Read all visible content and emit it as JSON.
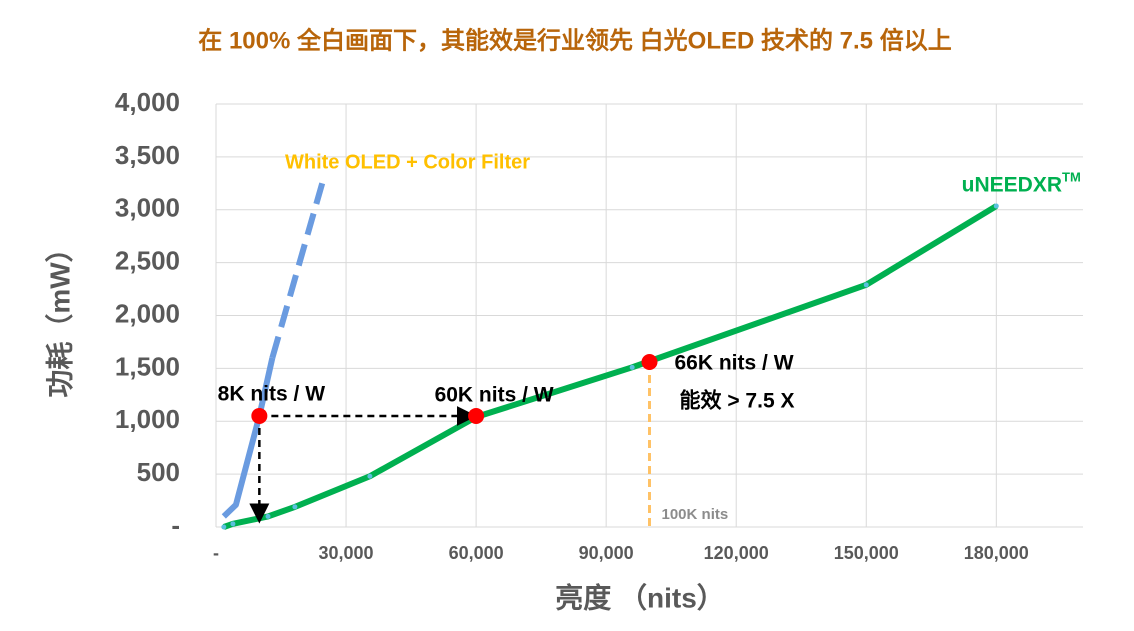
{
  "chart_data": {
    "type": "line",
    "title": "在 100% 全白画面下，其能效是行业领先 白光OLED 技术的 7.5 倍以上",
    "y_label": "功耗（mW）",
    "x_label": "亮度 （nits）",
    "xlim": [
      0,
      200000
    ],
    "ylim": [
      0,
      4000
    ],
    "xticks": [
      {
        "value": 0,
        "label": "-"
      },
      {
        "value": 30000,
        "label": "30,000"
      },
      {
        "value": 60000,
        "label": "60,000"
      },
      {
        "value": 90000,
        "label": "90,000"
      },
      {
        "value": 120000,
        "label": "120,000"
      },
      {
        "value": 150000,
        "label": "150,000"
      },
      {
        "value": 180000,
        "label": "180,000"
      }
    ],
    "yticks": [
      {
        "value": 0,
        "label": "-"
      },
      500,
      {
        "value": 1000,
        "label": "1,000"
      },
      {
        "value": 1500,
        "label": "1,500"
      },
      {
        "value": 2000,
        "label": "2,000"
      },
      {
        "value": 2500,
        "label": "2,500"
      },
      {
        "value": 3000,
        "label": "3,000"
      },
      {
        "value": 3500,
        "label": "3,500"
      },
      {
        "value": 4000,
        "label": "4,000"
      }
    ],
    "grid": true,
    "series": [
      {
        "name": "White OLED + Color Filter",
        "color": "#6a9be0",
        "label_color": "#ffc000",
        "x": [
          1800,
          4600,
          10000,
          13000
        ],
        "values": [
          100,
          210,
          1050,
          1600
        ]
      },
      {
        "color": "#6a9be0",
        "dashed": true,
        "x": [
          13000,
          24500
        ],
        "values": [
          1600,
          3250
        ]
      },
      {
        "name": "uNEEDXR",
        "name_sup": "TM",
        "color": "#00b050",
        "label_color": "#00b050",
        "x": [
          1800,
          3900,
          12000,
          18200,
          35500,
          60000,
          96000,
          150000,
          180000
        ],
        "values": [
          0,
          30,
          100,
          190,
          480,
          1040,
          1510,
          2290,
          3035
        ],
        "markers": true
      }
    ],
    "highlight_points": [
      {
        "x": 10000,
        "y": 1050,
        "label": "8K nits / W"
      },
      {
        "x": 60000,
        "y": 1050,
        "label": "60K nits / W"
      },
      {
        "x": 100000,
        "y": 1560,
        "label": "66K nits / W",
        "note": "能效 > 7.5 X"
      }
    ],
    "arrows": [
      {
        "x": [
          10000,
          59000
        ],
        "y": [
          1050,
          1050
        ]
      },
      {
        "x": [
          10000,
          10000
        ],
        "y": [
          1050,
          80
        ]
      }
    ],
    "reference_line": {
      "x": 100000,
      "y": [
        1560,
        0
      ],
      "label": "100K nits",
      "color": "#ffc266"
    }
  }
}
